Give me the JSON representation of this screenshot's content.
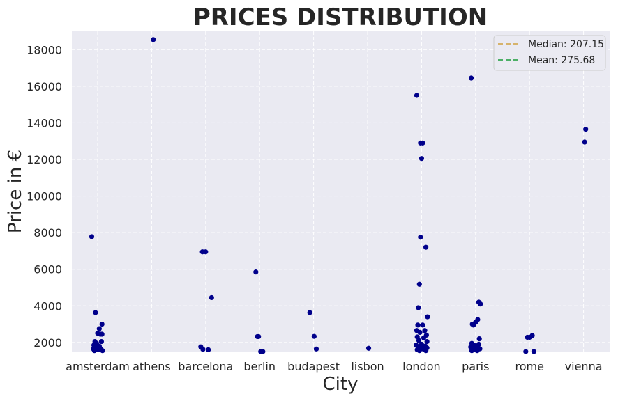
{
  "chart_data": {
    "type": "scatter",
    "title": "PRICES DISTRIBUTION",
    "xlabel": "City",
    "ylabel": "Price in €",
    "categories": [
      "amsterdam",
      "athens",
      "barcelona",
      "berlin",
      "budapest",
      "lisbon",
      "london",
      "paris",
      "rome",
      "vienna"
    ],
    "ylim": [
      1500,
      19000
    ],
    "yticks": [
      "2000",
      "4000",
      "6000",
      "8000",
      "10000",
      "12000",
      "14000",
      "16000",
      "18000"
    ],
    "grid": true,
    "legend_position": "top-right",
    "reference_lines": [
      {
        "label": "Median: 207.15",
        "value": 207.15,
        "color": "#d6b36c",
        "style": "dashed"
      },
      {
        "label": "Mean: 275.68",
        "value": 275.68,
        "color": "#4caf66",
        "style": "dashed"
      }
    ],
    "point_color": "#00008b",
    "points": [
      {
        "city": "amsterdam",
        "offset": -0.11,
        "price": 7780
      },
      {
        "city": "amsterdam",
        "offset": -0.04,
        "price": 3630
      },
      {
        "city": "amsterdam",
        "offset": 0.08,
        "price": 3000
      },
      {
        "city": "amsterdam",
        "offset": 0.03,
        "price": 2750
      },
      {
        "city": "amsterdam",
        "offset": 0.0,
        "price": 2500
      },
      {
        "city": "amsterdam",
        "offset": 0.05,
        "price": 2450
      },
      {
        "city": "amsterdam",
        "offset": 0.08,
        "price": 2450
      },
      {
        "city": "amsterdam",
        "offset": -0.05,
        "price": 2050
      },
      {
        "city": "amsterdam",
        "offset": 0.07,
        "price": 2050
      },
      {
        "city": "amsterdam",
        "offset": -0.02,
        "price": 1950
      },
      {
        "city": "amsterdam",
        "offset": -0.07,
        "price": 1850
      },
      {
        "city": "amsterdam",
        "offset": 0.03,
        "price": 1800
      },
      {
        "city": "amsterdam",
        "offset": -0.03,
        "price": 1750
      },
      {
        "city": "amsterdam",
        "offset": 0.04,
        "price": 1700
      },
      {
        "city": "amsterdam",
        "offset": -0.08,
        "price": 1650
      },
      {
        "city": "amsterdam",
        "offset": 0.06,
        "price": 1650
      },
      {
        "city": "amsterdam",
        "offset": -0.01,
        "price": 1600
      },
      {
        "city": "amsterdam",
        "offset": 0.02,
        "price": 1600
      },
      {
        "city": "amsterdam",
        "offset": -0.06,
        "price": 1550
      },
      {
        "city": "amsterdam",
        "offset": 0.09,
        "price": 1550
      },
      {
        "city": "athens",
        "offset": 0.03,
        "price": 18550
      },
      {
        "city": "barcelona",
        "offset": -0.06,
        "price": 6950
      },
      {
        "city": "barcelona",
        "offset": 0.0,
        "price": 6950
      },
      {
        "city": "barcelona",
        "offset": 0.11,
        "price": 4450
      },
      {
        "city": "barcelona",
        "offset": -0.09,
        "price": 1760
      },
      {
        "city": "barcelona",
        "offset": -0.05,
        "price": 1620
      },
      {
        "city": "barcelona",
        "offset": 0.05,
        "price": 1600
      },
      {
        "city": "berlin",
        "offset": -0.07,
        "price": 5850
      },
      {
        "city": "berlin",
        "offset": -0.04,
        "price": 2320
      },
      {
        "city": "berlin",
        "offset": -0.02,
        "price": 2320
      },
      {
        "city": "berlin",
        "offset": 0.02,
        "price": 1500
      },
      {
        "city": "berlin",
        "offset": 0.06,
        "price": 1500
      },
      {
        "city": "budapest",
        "offset": -0.07,
        "price": 3630
      },
      {
        "city": "budapest",
        "offset": 0.01,
        "price": 2330
      },
      {
        "city": "budapest",
        "offset": 0.05,
        "price": 1640
      },
      {
        "city": "lisbon",
        "offset": 0.02,
        "price": 1680
      },
      {
        "city": "london",
        "offset": -0.09,
        "price": 15500
      },
      {
        "city": "london",
        "offset": -0.02,
        "price": 12900
      },
      {
        "city": "london",
        "offset": 0.02,
        "price": 12900
      },
      {
        "city": "london",
        "offset": 0.0,
        "price": 12050
      },
      {
        "city": "london",
        "offset": -0.02,
        "price": 7750
      },
      {
        "city": "london",
        "offset": 0.08,
        "price": 7200
      },
      {
        "city": "london",
        "offset": -0.04,
        "price": 5180
      },
      {
        "city": "london",
        "offset": -0.06,
        "price": 3900
      },
      {
        "city": "london",
        "offset": 0.11,
        "price": 3400
      },
      {
        "city": "london",
        "offset": -0.07,
        "price": 2950
      },
      {
        "city": "london",
        "offset": 0.02,
        "price": 2950
      },
      {
        "city": "london",
        "offset": -0.09,
        "price": 2650
      },
      {
        "city": "london",
        "offset": 0.06,
        "price": 2650
      },
      {
        "city": "london",
        "offset": -0.03,
        "price": 2550
      },
      {
        "city": "london",
        "offset": 0.09,
        "price": 2400
      },
      {
        "city": "london",
        "offset": -0.08,
        "price": 2300
      },
      {
        "city": "london",
        "offset": 0.04,
        "price": 2250
      },
      {
        "city": "london",
        "offset": -0.05,
        "price": 2100
      },
      {
        "city": "london",
        "offset": 0.1,
        "price": 2050
      },
      {
        "city": "london",
        "offset": 0.0,
        "price": 1900
      },
      {
        "city": "london",
        "offset": -0.1,
        "price": 1850
      },
      {
        "city": "london",
        "offset": 0.07,
        "price": 1800
      },
      {
        "city": "london",
        "offset": -0.06,
        "price": 1750
      },
      {
        "city": "london",
        "offset": 0.03,
        "price": 1700
      },
      {
        "city": "london",
        "offset": 0.1,
        "price": 1700
      },
      {
        "city": "london",
        "offset": -0.02,
        "price": 1650
      },
      {
        "city": "london",
        "offset": -0.08,
        "price": 1600
      },
      {
        "city": "london",
        "offset": 0.05,
        "price": 1600
      },
      {
        "city": "london",
        "offset": 0.08,
        "price": 1550
      },
      {
        "city": "london",
        "offset": -0.04,
        "price": 1550
      },
      {
        "city": "paris",
        "offset": -0.08,
        "price": 16450
      },
      {
        "city": "paris",
        "offset": 0.06,
        "price": 4200
      },
      {
        "city": "paris",
        "offset": 0.09,
        "price": 4100
      },
      {
        "city": "paris",
        "offset": 0.04,
        "price": 3250
      },
      {
        "city": "paris",
        "offset": 0.0,
        "price": 3100
      },
      {
        "city": "paris",
        "offset": -0.06,
        "price": 3000
      },
      {
        "city": "paris",
        "offset": -0.04,
        "price": 2950
      },
      {
        "city": "paris",
        "offset": 0.07,
        "price": 2200
      },
      {
        "city": "paris",
        "offset": -0.07,
        "price": 1950
      },
      {
        "city": "paris",
        "offset": 0.06,
        "price": 1900
      },
      {
        "city": "paris",
        "offset": -0.03,
        "price": 1850
      },
      {
        "city": "paris",
        "offset": 0.04,
        "price": 1800
      },
      {
        "city": "paris",
        "offset": -0.09,
        "price": 1750
      },
      {
        "city": "paris",
        "offset": 0.01,
        "price": 1700
      },
      {
        "city": "paris",
        "offset": -0.05,
        "price": 1650
      },
      {
        "city": "paris",
        "offset": 0.08,
        "price": 1650
      },
      {
        "city": "paris",
        "offset": -0.01,
        "price": 1600
      },
      {
        "city": "paris",
        "offset": 0.03,
        "price": 1550
      },
      {
        "city": "paris",
        "offset": -0.07,
        "price": 1550
      },
      {
        "city": "rome",
        "offset": -0.04,
        "price": 2280
      },
      {
        "city": "rome",
        "offset": 0.0,
        "price": 2280
      },
      {
        "city": "rome",
        "offset": 0.05,
        "price": 2380
      },
      {
        "city": "rome",
        "offset": -0.07,
        "price": 1500
      },
      {
        "city": "rome",
        "offset": 0.08,
        "price": 1500
      },
      {
        "city": "vienna",
        "offset": 0.04,
        "price": 13650
      },
      {
        "city": "vienna",
        "offset": 0.02,
        "price": 12950
      }
    ]
  }
}
